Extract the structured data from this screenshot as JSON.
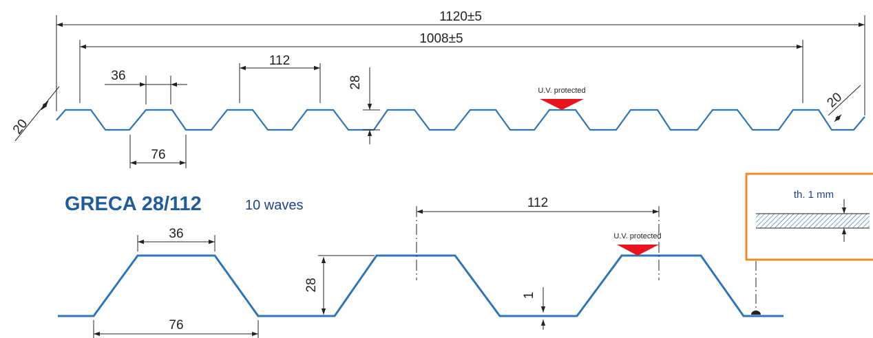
{
  "product": {
    "title": "GRECA 28/112",
    "subtitle": "10 waves"
  },
  "colors": {
    "profile": "#2e75b6",
    "title": "#1f5c99",
    "subtitle": "#1f3f8f",
    "uv_marker": "#e8141e",
    "detail_border": "#ee8b2a",
    "hatch": "#2e75b6"
  },
  "top_view": {
    "overall_width": "1120±5",
    "cover_width": "1008±5",
    "pitch": "112",
    "crest_width": "36",
    "base_width": "76",
    "height": "28",
    "edge_left": "20",
    "edge_right": "20",
    "uv_label": "U.V. protected"
  },
  "bottom_view": {
    "pitch": "112",
    "crest_width": "36",
    "base_width": "76",
    "height": "28",
    "thickness_dim": "1",
    "uv_label": "U.V. protected"
  },
  "detail": {
    "label": "th. 1 mm"
  }
}
